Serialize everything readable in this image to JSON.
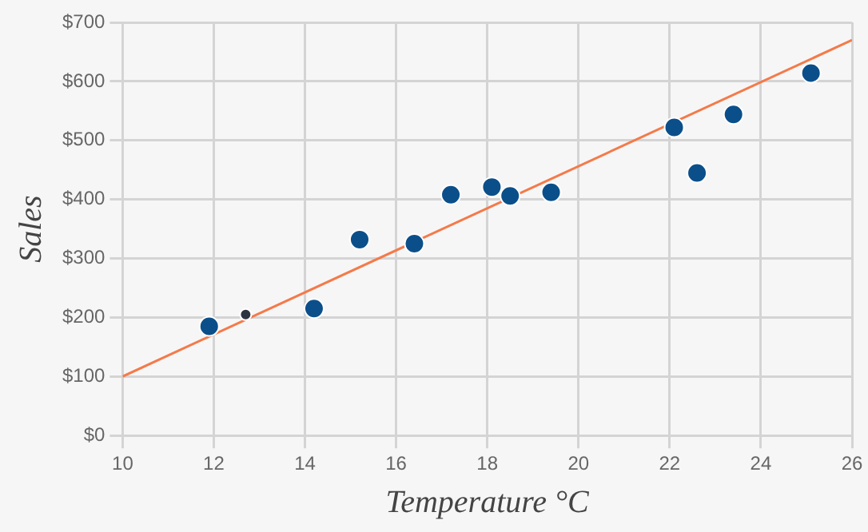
{
  "chart_data": {
    "type": "scatter",
    "xlabel": "Temperature °C",
    "ylabel": "Sales",
    "series": [
      {
        "color": "#0b4f8a",
        "marker": "circle",
        "x": [
          11.9,
          14.2,
          15.2,
          16.4,
          17.2,
          18.1,
          18.5,
          19.4,
          22.1,
          22.6,
          23.4,
          25.1
        ],
        "values": [
          185,
          215,
          332,
          325,
          408,
          421,
          406,
          412,
          522,
          445,
          544,
          614
        ]
      },
      {
        "color": "#2d3440",
        "marker": "circle",
        "x": [
          12.7
        ],
        "values": [
          205
        ]
      },
      {
        "type": "line",
        "marker": "none",
        "color": "#f47a4a",
        "x": [
          10,
          26
        ],
        "values": [
          100,
          670
        ]
      }
    ],
    "xlim": [
      10,
      26
    ],
    "xticks": [
      10,
      12,
      14,
      16,
      18,
      20,
      22,
      24,
      26
    ],
    "ylim": [
      0,
      700
    ],
    "yticks": [
      {
        "value": 0,
        "label": "$0"
      },
      {
        "value": 100,
        "label": "$100"
      },
      {
        "value": 200,
        "label": "$200"
      },
      {
        "value": 300,
        "label": "$300"
      },
      {
        "value": 400,
        "label": "$400"
      },
      {
        "value": 500,
        "label": "$500"
      },
      {
        "value": 600,
        "label": "$600"
      },
      {
        "value": 700,
        "label": "$700"
      }
    ],
    "grid": true,
    "legend": false
  }
}
